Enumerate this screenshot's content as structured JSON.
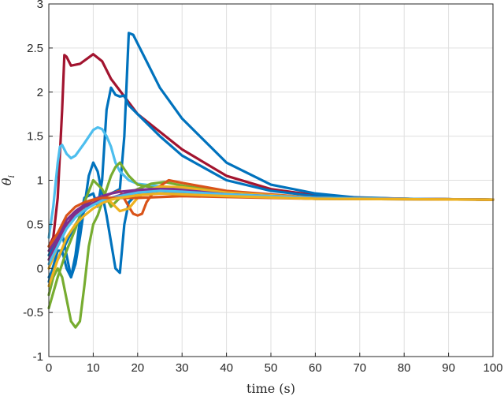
{
  "chart_data": {
    "type": "line",
    "title": "",
    "xlabel": "time (s)",
    "ylabel": "θ_i",
    "xlim": [
      0,
      100
    ],
    "ylim": [
      -1,
      3
    ],
    "xticks": [
      0,
      10,
      20,
      30,
      40,
      50,
      60,
      70,
      80,
      90,
      100
    ],
    "yticks": [
      -1,
      -0.5,
      0,
      0.5,
      1,
      1.5,
      2,
      2.5,
      3
    ],
    "grid": true,
    "legend": "none",
    "series": [
      {
        "color": "#A2142F",
        "x": [
          0,
          1,
          2,
          3,
          3.5,
          4,
          5,
          7,
          10,
          12,
          14,
          17,
          20,
          25,
          30,
          40,
          50,
          60,
          70,
          80,
          100
        ],
        "y": [
          0.25,
          0.35,
          0.8,
          1.8,
          2.42,
          2.4,
          2.3,
          2.32,
          2.43,
          2.35,
          2.15,
          1.95,
          1.75,
          1.55,
          1.35,
          1.05,
          0.9,
          0.83,
          0.8,
          0.79,
          0.78
        ]
      },
      {
        "color": "#0072BD",
        "x": [
          0,
          2,
          4,
          6,
          8,
          10,
          12,
          14,
          16,
          17,
          18,
          19,
          20,
          22,
          25,
          30,
          40,
          50,
          60,
          70,
          80,
          100
        ],
        "y": [
          -0.1,
          0.1,
          0.3,
          0.5,
          0.65,
          0.75,
          0.8,
          0.85,
          0.9,
          1.5,
          2.67,
          2.65,
          2.55,
          2.35,
          2.05,
          1.7,
          1.2,
          0.95,
          0.85,
          0.8,
          0.79,
          0.78
        ]
      },
      {
        "color": "#0072BD",
        "x": [
          0,
          2,
          3,
          4,
          5,
          6,
          7,
          8,
          10,
          11,
          12,
          13,
          14,
          15,
          16,
          17,
          18,
          20,
          25,
          30,
          40,
          50,
          60,
          80,
          100
        ],
        "y": [
          -0.15,
          0.2,
          0.2,
          0.0,
          -0.1,
          0.15,
          0.55,
          0.8,
          0.85,
          0.7,
          1.0,
          1.8,
          2.05,
          1.97,
          1.95,
          1.96,
          1.85,
          1.75,
          1.5,
          1.28,
          1.0,
          0.88,
          0.82,
          0.79,
          0.78
        ]
      },
      {
        "color": "#0072BD",
        "x": [
          0,
          1,
          2,
          3,
          4,
          5,
          6,
          7,
          8,
          9,
          10,
          11,
          12,
          13,
          14,
          15,
          16,
          17,
          18,
          20,
          25,
          30,
          40,
          60,
          100
        ],
        "y": [
          0.15,
          0.25,
          0.35,
          0.4,
          0.15,
          -0.1,
          0.05,
          0.35,
          0.7,
          1.05,
          1.2,
          1.1,
          0.85,
          0.6,
          0.3,
          0.0,
          -0.05,
          0.5,
          0.75,
          0.85,
          0.88,
          0.86,
          0.82,
          0.79,
          0.78
        ]
      },
      {
        "color": "#4DBEEE",
        "x": [
          0,
          1,
          2,
          2.5,
          3,
          4,
          5,
          6,
          8,
          10,
          11,
          12,
          13,
          14,
          15,
          16,
          18,
          20,
          25,
          30,
          40,
          50,
          60,
          100
        ],
        "y": [
          0.35,
          0.7,
          1.2,
          1.38,
          1.4,
          1.3,
          1.25,
          1.28,
          1.42,
          1.57,
          1.6,
          1.58,
          1.5,
          1.38,
          1.2,
          1.1,
          1.0,
          0.96,
          0.93,
          0.9,
          0.86,
          0.82,
          0.8,
          0.78
        ]
      },
      {
        "color": "#77AC30",
        "x": [
          0,
          1,
          2,
          3,
          4,
          5,
          6,
          7,
          8,
          9,
          10,
          11,
          12,
          13,
          14,
          15,
          16,
          18,
          20,
          25,
          30,
          40,
          60,
          100
        ],
        "y": [
          -0.3,
          -0.1,
          0.0,
          -0.1,
          -0.35,
          -0.6,
          -0.67,
          -0.6,
          -0.2,
          0.25,
          0.5,
          0.6,
          0.75,
          0.9,
          1.05,
          1.15,
          1.2,
          1.05,
          0.95,
          0.9,
          0.88,
          0.84,
          0.8,
          0.78
        ]
      },
      {
        "color": "#77AC30",
        "x": [
          0,
          2,
          4,
          6,
          8,
          10,
          12,
          14,
          16,
          18,
          20,
          23,
          26,
          30,
          40,
          60,
          100
        ],
        "y": [
          -0.45,
          -0.1,
          0.2,
          0.45,
          0.75,
          1.0,
          0.9,
          0.7,
          0.8,
          0.85,
          0.9,
          0.96,
          0.98,
          0.94,
          0.86,
          0.8,
          0.78
        ]
      },
      {
        "color": "#D95319",
        "x": [
          0,
          2,
          4,
          6,
          8,
          10,
          12,
          14,
          16,
          18,
          19,
          20,
          21,
          22,
          24,
          27,
          30,
          40,
          60,
          100
        ],
        "y": [
          0.1,
          0.3,
          0.5,
          0.6,
          0.7,
          0.75,
          0.8,
          0.85,
          0.88,
          0.7,
          0.62,
          0.6,
          0.62,
          0.75,
          0.9,
          1.0,
          0.97,
          0.88,
          0.8,
          0.78
        ]
      },
      {
        "color": "#EDB120",
        "x": [
          0,
          2,
          4,
          6,
          8,
          10,
          12,
          14,
          16,
          18,
          20,
          22,
          25,
          30,
          40,
          60,
          100
        ],
        "y": [
          0.0,
          0.25,
          0.45,
          0.6,
          0.7,
          0.78,
          0.82,
          0.75,
          0.65,
          0.68,
          0.8,
          0.88,
          0.93,
          0.92,
          0.86,
          0.8,
          0.78
        ]
      },
      {
        "color": "#7E2F8E",
        "x": [
          0,
          2,
          4,
          6,
          8,
          10,
          12,
          14,
          16,
          18,
          20,
          23,
          26,
          30,
          40,
          60,
          100
        ],
        "y": [
          0.2,
          0.35,
          0.55,
          0.65,
          0.72,
          0.78,
          0.82,
          0.85,
          0.87,
          0.88,
          0.89,
          0.9,
          0.9,
          0.88,
          0.84,
          0.8,
          0.78
        ]
      },
      {
        "color": "#7E2F8E",
        "x": [
          0,
          2,
          4,
          6,
          8,
          10,
          12,
          14,
          16,
          18,
          20,
          24,
          28,
          32,
          40,
          60,
          100
        ],
        "y": [
          0.1,
          0.3,
          0.5,
          0.62,
          0.7,
          0.74,
          0.78,
          0.8,
          0.83,
          0.86,
          0.88,
          0.9,
          0.9,
          0.88,
          0.84,
          0.8,
          0.78
        ]
      },
      {
        "color": "#4DBEEE",
        "x": [
          0,
          2,
          4,
          6,
          8,
          10,
          12,
          14,
          16,
          18,
          20,
          25,
          30,
          40,
          60,
          100
        ],
        "y": [
          0.05,
          0.25,
          0.45,
          0.58,
          0.66,
          0.72,
          0.77,
          0.8,
          0.82,
          0.84,
          0.86,
          0.88,
          0.87,
          0.84,
          0.8,
          0.78
        ]
      },
      {
        "color": "#D95319",
        "x": [
          0,
          2,
          4,
          6,
          8,
          10,
          12,
          14,
          16,
          20,
          25,
          30,
          40,
          60,
          100
        ],
        "y": [
          0.25,
          0.4,
          0.6,
          0.7,
          0.75,
          0.78,
          0.8,
          0.8,
          0.8,
          0.8,
          0.81,
          0.82,
          0.81,
          0.79,
          0.78
        ]
      },
      {
        "color": "#EDB120",
        "x": [
          0,
          2,
          4,
          6,
          8,
          10,
          12,
          14,
          16,
          20,
          25,
          30,
          40,
          60,
          100
        ],
        "y": [
          -0.2,
          0.1,
          0.35,
          0.5,
          0.6,
          0.68,
          0.74,
          0.78,
          0.8,
          0.83,
          0.85,
          0.84,
          0.82,
          0.79,
          0.78
        ]
      }
    ]
  }
}
